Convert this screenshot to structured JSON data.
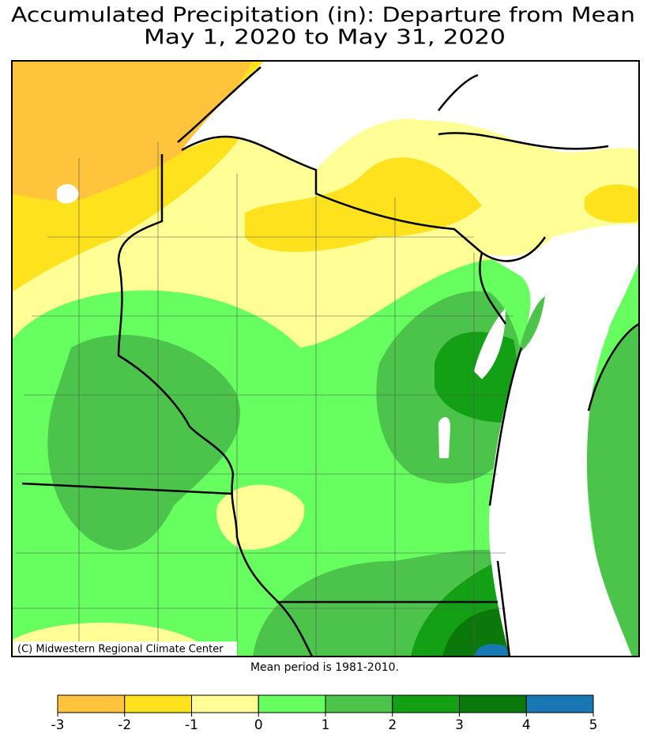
{
  "title": [
    "Accumulated Precipitation (in): Departure from Mean",
    "May 1, 2020 to May 31, 2020"
  ],
  "credit": "(C) Midwestern Regional Climate Center",
  "note": "Mean period is 1981-2010.",
  "legend": {
    "bins": [
      -3,
      -2,
      -1,
      0,
      1,
      2,
      3,
      4,
      5
    ],
    "colors": [
      "#ffc43c",
      "#ffe21e",
      "#ffff96",
      "#66ff5f",
      "#4cc44c",
      "#14a014",
      "#0a780a",
      "#1878b4"
    ]
  }
}
